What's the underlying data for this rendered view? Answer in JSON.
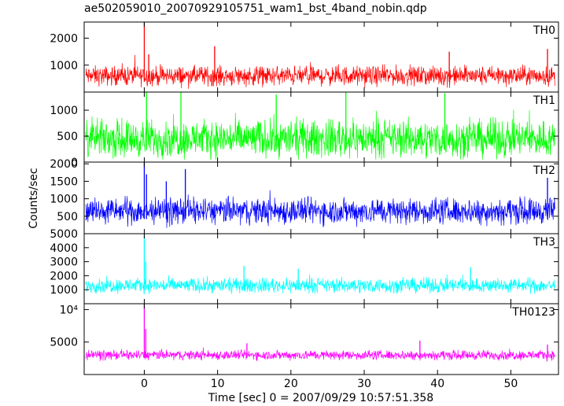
{
  "chart_data": {
    "type": "line",
    "title": "ae502059010_20070929105751_wam1_bst_4band_nobin.qdp",
    "xlabel": "Time [sec] 0 = 2007/09/29 10:57:51.358",
    "ylabel": "Counts/sec",
    "xlim": [
      -8.2,
      56.5
    ],
    "xticks": [
      0,
      10,
      20,
      30,
      40,
      50
    ],
    "xtick_labels": [
      "0",
      "10",
      "20",
      "30",
      "40",
      "50"
    ],
    "grid": false,
    "panels": [
      {
        "name": "TH0",
        "color": "#ff0000",
        "ylim": [
          0,
          2600
        ],
        "yticks": [
          1000,
          2000
        ],
        "ytick_labels": [
          "1000",
          "2000"
        ],
        "x_range": [
          -8.0,
          56.0
        ],
        "baseline": 600,
        "noise": 220,
        "min": 100,
        "max": 1400,
        "peaks": [
          {
            "x": 0.0,
            "y": 2600
          },
          {
            "x": 0.6,
            "y": 1400
          },
          {
            "x": 9.6,
            "y": 1700
          },
          {
            "x": 41.6,
            "y": 1500
          },
          {
            "x": 55.0,
            "y": 1600
          }
        ]
      },
      {
        "name": "TH1",
        "color": "#00ff00",
        "ylim": [
          0,
          1350
        ],
        "yticks": [
          0,
          500,
          1000
        ],
        "ytick_labels": [
          "0",
          "500",
          "1000"
        ],
        "x_range": [
          -8.0,
          56.0
        ],
        "baseline": 450,
        "noise": 220,
        "min": 50,
        "max": 1300,
        "peaks": [
          {
            "x": 0.3,
            "y": 1350
          },
          {
            "x": 5.0,
            "y": 1350
          },
          {
            "x": 18.0,
            "y": 1300
          },
          {
            "x": 27.5,
            "y": 1350
          },
          {
            "x": 41.0,
            "y": 1330
          }
        ]
      },
      {
        "name": "TH2",
        "color": "#0000ff",
        "ylim": [
          0,
          2050
        ],
        "yticks": [
          500,
          1000,
          1500,
          2000
        ],
        "ytick_labels": [
          "500",
          "1000",
          "1500",
          "2000"
        ],
        "x_range": [
          -8.0,
          56.0
        ],
        "baseline": 650,
        "noise": 230,
        "min": 100,
        "max": 1450,
        "peaks": [
          {
            "x": 0.0,
            "y": 2050
          },
          {
            "x": 0.3,
            "y": 1700
          },
          {
            "x": 5.6,
            "y": 1850
          },
          {
            "x": 3.0,
            "y": 1500
          },
          {
            "x": 55.0,
            "y": 1600
          }
        ]
      },
      {
        "name": "TH3",
        "color": "#00ffff",
        "ylim": [
          0,
          5000
        ],
        "yticks": [
          1000,
          2000,
          3000,
          4000,
          5000
        ],
        "ytick_labels": [
          "1000",
          "2000",
          "3000",
          "4000",
          "5000"
        ],
        "x_range": [
          -8.0,
          56.0
        ],
        "baseline": 1300,
        "noise": 320,
        "min": 700,
        "max": 2400,
        "peaks": [
          {
            "x": 0.0,
            "y": 5000
          },
          {
            "x": 0.2,
            "y": 3000
          },
          {
            "x": 13.6,
            "y": 2700
          },
          {
            "x": 44.5,
            "y": 2600
          },
          {
            "x": 21.0,
            "y": 2500
          }
        ]
      },
      {
        "name": "TH0123",
        "color": "#ff00ff",
        "ylim": [
          0,
          10900
        ],
        "yticks": [
          5000,
          10000
        ],
        "ytick_labels": [
          "5000",
          "10⁴"
        ],
        "x_range": [
          -8.0,
          56.0
        ],
        "baseline": 3000,
        "noise": 450,
        "min": 2000,
        "max": 4500,
        "peaks": [
          {
            "x": 0.0,
            "y": 10900
          },
          {
            "x": 0.2,
            "y": 7000
          },
          {
            "x": 37.6,
            "y": 5200
          },
          {
            "x": 14.0,
            "y": 4800
          },
          {
            "x": 55.0,
            "y": 4600
          }
        ]
      }
    ]
  }
}
